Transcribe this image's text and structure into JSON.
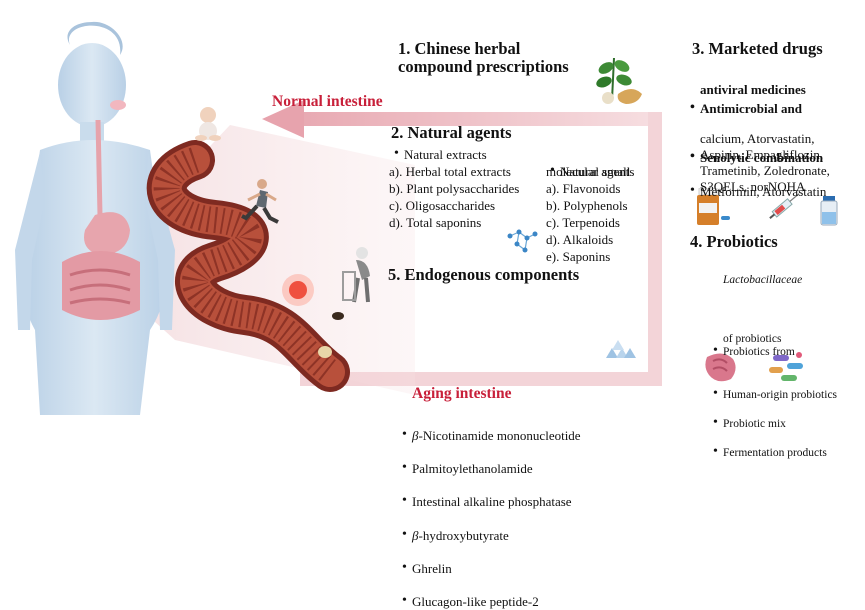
{
  "labels": {
    "normal_intestine": "Normal intestine",
    "aging_intestine": "Aging intestine"
  },
  "section1": {
    "heading_line1": "1. Chinese herbal",
    "heading_line2": "compound prescriptions"
  },
  "section2": {
    "heading": "2. Natural agents",
    "left_group": "Natural extracts",
    "left_items": [
      "a). Herbal total extracts",
      "b). Plant polysaccharides",
      "c). Oligosaccharides",
      "d). Total saponins"
    ],
    "right_group_line1": "Natural small",
    "right_group_line2": "molecular agents",
    "right_items": [
      "a). Flavonoids",
      "b). Polyphenols",
      "c). Terpenoids",
      "d). Alkaloids",
      "e). Saponins"
    ]
  },
  "section3": {
    "heading": "3. Marketed drugs",
    "item1_line1": "Antimicrobial and",
    "item1_line2": "antiviral medicines",
    "item2": "Senolytic combination",
    "item3_lines": [
      "Metformin, Atorvastatin",
      "calcium, Atorvastatin,",
      "Aspirin, Empagliflozin,",
      "Trametinib, Zoledronate,",
      "S3QELs, norNOHA"
    ]
  },
  "section4": {
    "heading": "4. Probiotics",
    "item1_line1": "Probiotics from",
    "item1_line2": "Lactobacillaceae",
    "item2": "Human-origin probiotics",
    "item3": "Probiotic mix",
    "item4_line1": "Fermentation products",
    "item4_line2": "of probiotics"
  },
  "section5": {
    "heading": "5. Endogenous components",
    "item1_prefix": "β",
    "item1_rest": "-Nicotinamide mononucleotide",
    "item2": "Palmitoylethanolamide",
    "item3": "Intestinal alkaline phosphatase",
    "item4_prefix": "β",
    "item4_rest": "-hydroxybutyrate",
    "item5": "Ghrelin",
    "item6": "Glucagon-like peptide-2"
  },
  "colors": {
    "label_red": "#c8203a",
    "arrow_pink": "#f0c7cc",
    "intestine_dark": "#8c2b22",
    "intestine_light": "#c0563e",
    "body_blue": "#c9dcec"
  },
  "icons": [
    "body-silhouette",
    "herb-icon",
    "baby-icon",
    "runner-icon",
    "elderly-icon",
    "molecule-icon",
    "pill-bottle-icon",
    "syringe-icon",
    "vial-icon",
    "bacteria-icon",
    "crystal-icon"
  ]
}
